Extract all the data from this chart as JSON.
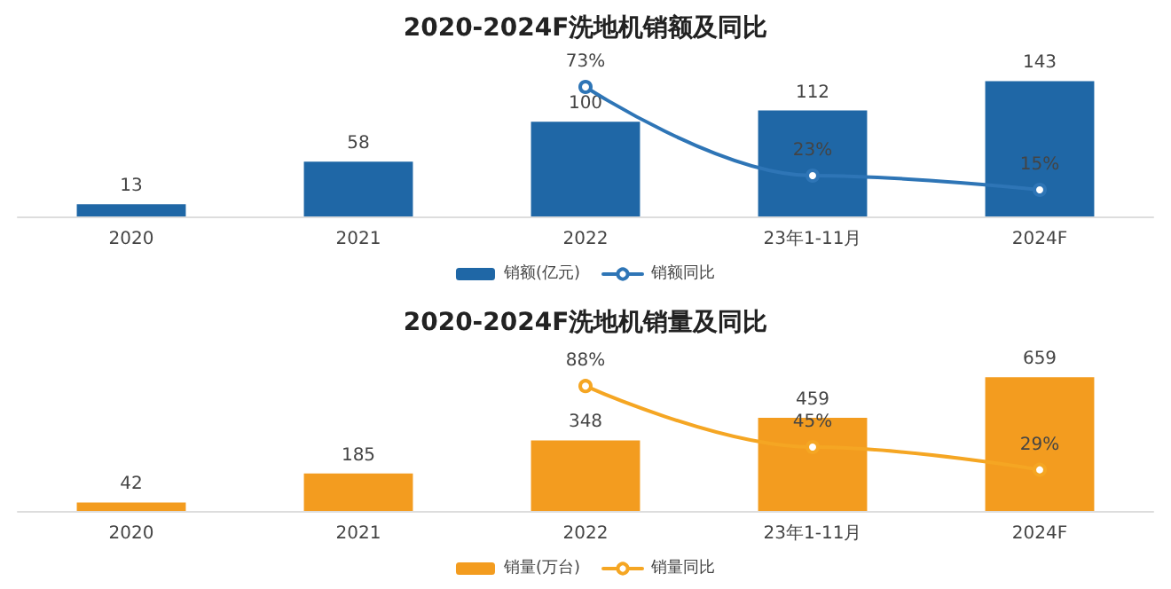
{
  "chart_data": [
    {
      "type": "bar",
      "title": "2020-2024F洗地机销额及同比",
      "categories": [
        "2020",
        "2021",
        "2022",
        "23年1-11月",
        "2024F"
      ],
      "series": [
        {
          "name": "销额(亿元)",
          "color": "#1f67a6",
          "values": [
            13,
            58,
            100,
            112,
            143
          ],
          "value_labels": [
            "13",
            "58",
            "100",
            "112",
            "143"
          ]
        },
        {
          "name": "销额同比",
          "type": "line",
          "axis": "y2",
          "color": "#2e75b6",
          "values": [
            null,
            null,
            73,
            23,
            15
          ],
          "value_labels": [
            null,
            null,
            "73%",
            "23%",
            "15%"
          ]
        }
      ],
      "legend": "bottom",
      "tick_labels": "x",
      "grid": false,
      "marker": "circle",
      "line_style": "solid"
    },
    {
      "type": "bar",
      "title": "2020-2024F洗地机销量及同比",
      "categories": [
        "2020",
        "2021",
        "2022",
        "23年1-11月",
        "2024F"
      ],
      "series": [
        {
          "name": "销量(万台)",
          "color": "#f39c1f",
          "values": [
            42,
            185,
            348,
            459,
            659
          ],
          "value_labels": [
            "42",
            "185",
            "348",
            "459",
            "659"
          ]
        },
        {
          "name": "销量同比",
          "type": "line",
          "axis": "y2",
          "color": "#f5a623",
          "values": [
            null,
            null,
            88,
            45,
            29
          ],
          "value_labels": [
            null,
            null,
            "88%",
            "45%",
            "29%"
          ]
        }
      ],
      "legend": "bottom",
      "tick_labels": "x",
      "grid": false,
      "marker": "circle",
      "line_style": "solid"
    }
  ]
}
